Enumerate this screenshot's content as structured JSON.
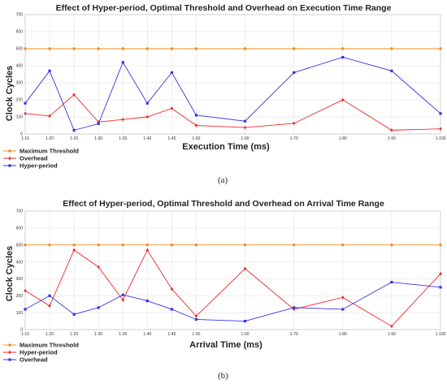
{
  "chart_data": [
    {
      "type": "line",
      "title": "Effect of Hyper-period, Optimal Threshold and Overhead on Execution Time Range",
      "xlabel": "Execution Time (ms)",
      "ylabel": "Clock Cycles",
      "categories": [
        "1-15",
        "1-20",
        "1-25",
        "1-30",
        "1-35",
        "1-40",
        "1-45",
        "1-50",
        "1-60",
        "1-70",
        "1-80",
        "1-90",
        "1-100"
      ],
      "x_positions": [
        15,
        20,
        25,
        30,
        35,
        40,
        45,
        50,
        60,
        70,
        80,
        90,
        100
      ],
      "ylim": [
        0,
        700
      ],
      "yticks": [
        0,
        100,
        200,
        300,
        400,
        500,
        600,
        700
      ],
      "grid": true,
      "legend_position": "bottom-left",
      "series": [
        {
          "name": "Maximum Threshold",
          "color": "#f28c1c",
          "marker": "circle",
          "values": [
            500,
            500,
            500,
            500,
            500,
            500,
            500,
            500,
            500,
            500,
            500,
            500,
            500
          ]
        },
        {
          "name": "Overhead",
          "color": "#ee2a2a",
          "marker": "diamond",
          "values": [
            120,
            105,
            230,
            70,
            85,
            100,
            150,
            50,
            38,
            62,
            200,
            22,
            30
          ]
        },
        {
          "name": "Hyper-period",
          "color": "#3434e8",
          "marker": "square",
          "values": [
            180,
            370,
            22,
            60,
            420,
            180,
            360,
            110,
            75,
            360,
            450,
            370,
            120
          ]
        }
      ],
      "caption": "(a)"
    },
    {
      "type": "line",
      "title": "Effect of Hyper-period, Optimal Threshold and Overhead on Arrival Time Range",
      "xlabel": "Arrival Time (ms)",
      "ylabel": "Clock Cycles",
      "categories": [
        "1-15",
        "1-20",
        "1-25",
        "1-30",
        "1-35",
        "1-40",
        "1-45",
        "1-50",
        "1-60",
        "1-70",
        "1-80",
        "1-90",
        "1-100"
      ],
      "x_positions": [
        15,
        20,
        25,
        30,
        35,
        40,
        45,
        50,
        60,
        70,
        80,
        90,
        100
      ],
      "ylim": [
        0,
        700
      ],
      "yticks": [
        0,
        100,
        200,
        300,
        400,
        500,
        600,
        700
      ],
      "grid": true,
      "legend_position": "bottom-left",
      "series": [
        {
          "name": "Maximum Threshold",
          "color": "#f28c1c",
          "marker": "circle",
          "values": [
            500,
            500,
            500,
            500,
            500,
            500,
            500,
            500,
            500,
            500,
            500,
            500,
            500
          ]
        },
        {
          "name": "Hyper-period",
          "color": "#ee2a2a",
          "marker": "diamond",
          "values": [
            230,
            140,
            470,
            370,
            175,
            470,
            240,
            80,
            360,
            120,
            190,
            20,
            330
          ]
        },
        {
          "name": "Overhead",
          "color": "#3434e8",
          "marker": "square",
          "values": [
            120,
            200,
            90,
            130,
            205,
            170,
            120,
            60,
            50,
            130,
            120,
            280,
            250
          ]
        }
      ],
      "caption": "(b)"
    }
  ]
}
